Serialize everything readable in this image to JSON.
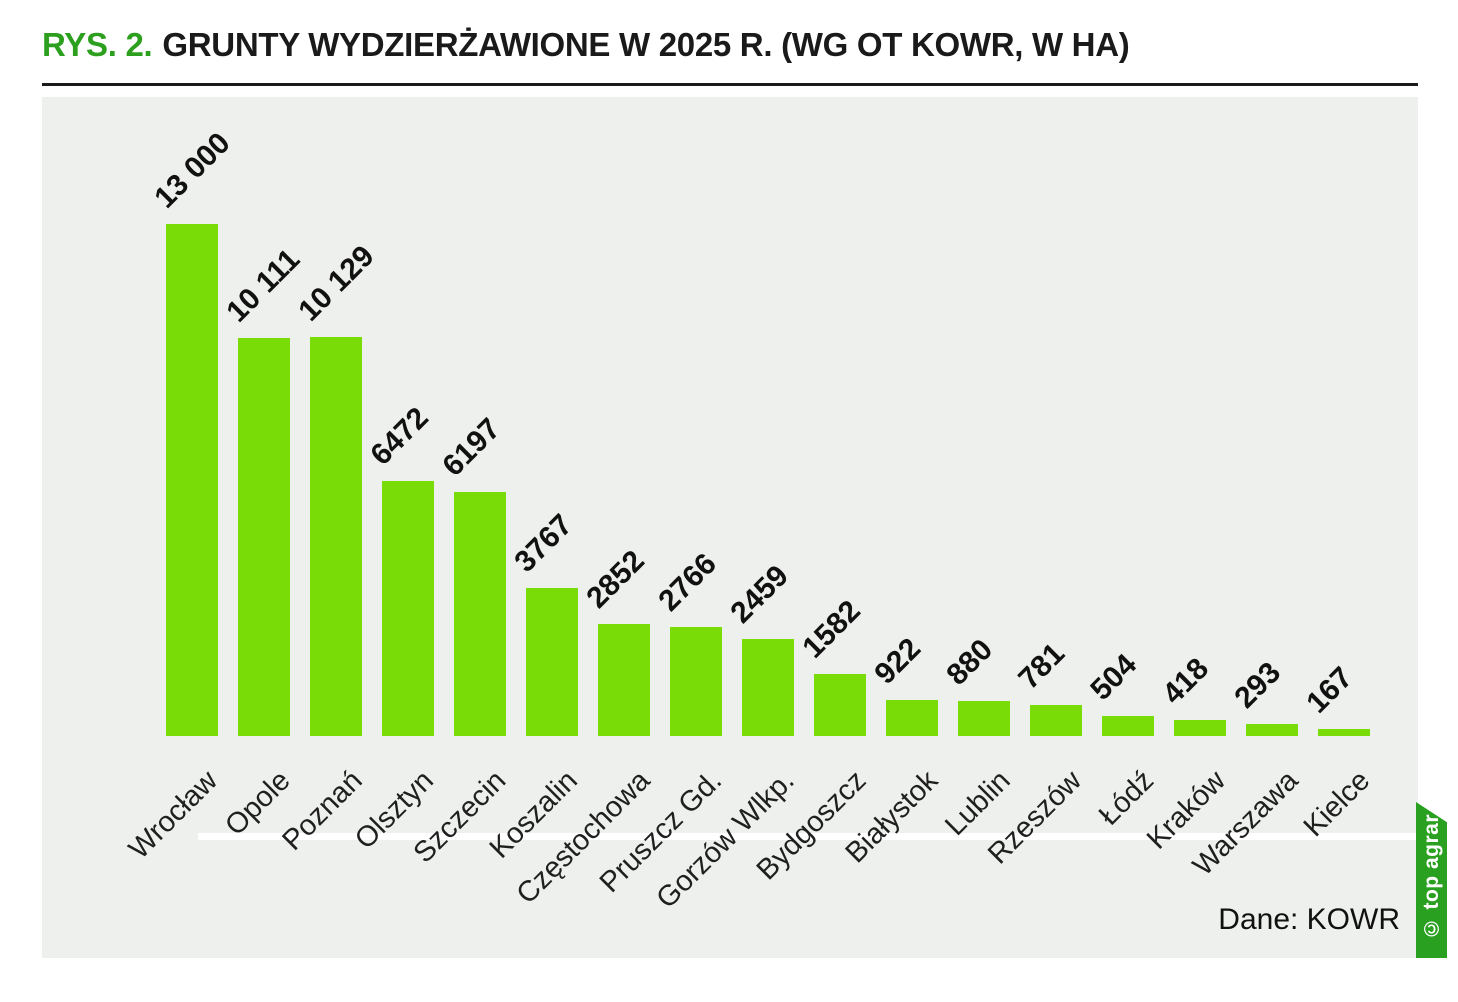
{
  "header": {
    "prefix": "RYS. 2.",
    "title": "GRUNTY WYDZIERŻAWIONE W 2025 R. (WG OT KOWR, W HA)"
  },
  "chart_data": {
    "type": "bar",
    "title": "GRUNTY WYDZIERŻAWIONE W 2025 R. (WG OT KOWR, W HA)",
    "xlabel": "",
    "ylabel": "",
    "ylim": [
      0,
      13000
    ],
    "grid": false,
    "legend": false,
    "xlabel_rotation": -45,
    "value_label_rotation": -45,
    "categories": [
      "Wrocław",
      "Opole",
      "Poznań",
      "Olsztyn",
      "Szczecin",
      "Koszalin",
      "Częstochowa",
      "Pruszcz Gd.",
      "Gorzów Wlkp.",
      "Bydgoszcz",
      "Białystok",
      "Lublin",
      "Rzeszów",
      "Łódź",
      "Kraków",
      "Warszawa",
      "Kielce"
    ],
    "values": [
      13000,
      10111,
      10129,
      6472,
      6197,
      3767,
      2852,
      2766,
      2459,
      1582,
      922,
      880,
      781,
      504,
      418,
      293,
      167
    ],
    "value_labels": [
      "13 000",
      "10 111",
      "10 129",
      "6472",
      "6197",
      "3767",
      "2852",
      "2766",
      "2459",
      "1582",
      "922",
      "880",
      "781",
      "504",
      "418",
      "293",
      "167"
    ]
  },
  "footer": {
    "source": "Dane: KOWR"
  },
  "watermark": {
    "text": "© top agrar"
  },
  "colors": {
    "accent_green": "#2ca01e",
    "bar_green": "#7adc06",
    "ribbon_green": "#2aa020",
    "panel_bg": "#eef0ed",
    "text": "#1a1a1a"
  }
}
